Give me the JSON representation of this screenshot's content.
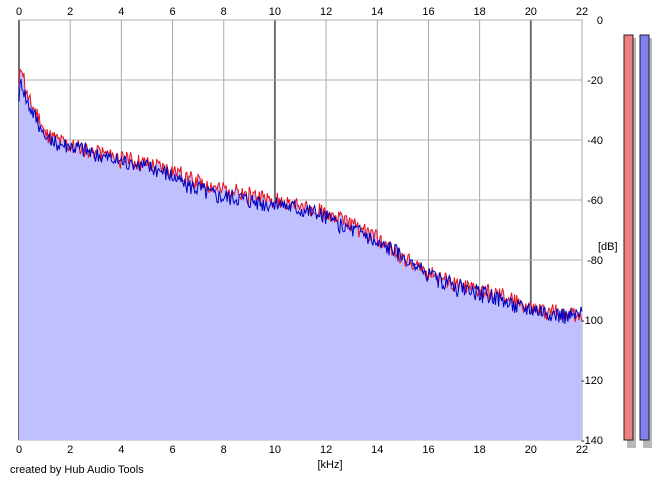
{
  "chart_data": {
    "type": "line",
    "title": "",
    "xlabel": "[kHz]",
    "ylabel": "[dB]",
    "xlim": [
      0,
      22
    ],
    "ylim": [
      -140,
      0
    ],
    "x_ticks": [
      0,
      2,
      4,
      6,
      8,
      10,
      12,
      14,
      16,
      18,
      20,
      22
    ],
    "y_ticks": [
      0,
      -20,
      -40,
      -60,
      -80,
      -100,
      -120,
      -140
    ],
    "x_tick_labels": [
      "0",
      "2",
      "4",
      "6",
      "8",
      "10",
      "12",
      "14",
      "16",
      "18",
      "20",
      "22"
    ],
    "y_tick_labels": [
      "0",
      "-20",
      "-40",
      "-60",
      "-80",
      "-100",
      "-120",
      "-140"
    ],
    "grid": true,
    "x_axis_labels_top_and_bottom": true,
    "series": [
      {
        "color": "#e8101a",
        "x": [
          0,
          0.1,
          0.3,
          0.5,
          0.8,
          1,
          1.5,
          2,
          2.5,
          3,
          3.5,
          4,
          4.5,
          5,
          5.5,
          6,
          6.5,
          7,
          7.5,
          8,
          8.5,
          9,
          9.5,
          10,
          10.5,
          11,
          11.5,
          12,
          12.5,
          13,
          13.5,
          14,
          14.5,
          15,
          15.5,
          16,
          16.5,
          17,
          17.5,
          18,
          18.5,
          19,
          19.5,
          20,
          20.5,
          21,
          21.5,
          22
        ],
        "values": [
          -22,
          -14,
          -25,
          -28,
          -33,
          -38,
          -40,
          -42,
          -43,
          -44,
          -45,
          -46,
          -47,
          -48,
          -49,
          -50,
          -52,
          -54,
          -55,
          -56,
          -57,
          -58,
          -59,
          -60,
          -61,
          -62,
          -63,
          -64,
          -66,
          -68,
          -70,
          -73,
          -76,
          -79,
          -82,
          -84,
          -86,
          -88,
          -89,
          -90,
          -91,
          -92,
          -94,
          -96,
          -97,
          -97,
          -98,
          -98
        ]
      },
      {
        "color": "#0000c0",
        "x": [
          0,
          0.1,
          0.3,
          0.5,
          0.8,
          1,
          1.5,
          2,
          2.5,
          3,
          3.5,
          4,
          4.5,
          5,
          5.5,
          6,
          6.5,
          7,
          7.5,
          8,
          8.5,
          9,
          9.5,
          10,
          10.5,
          11,
          11.5,
          12,
          12.5,
          13,
          13.5,
          14,
          14.5,
          15,
          15.5,
          16,
          16.5,
          17,
          17.5,
          18,
          18.5,
          19,
          19.5,
          20,
          20.5,
          21,
          21.5,
          22
        ],
        "values": [
          -25,
          -20,
          -27,
          -30,
          -35,
          -39,
          -41,
          -42,
          -43,
          -45,
          -46,
          -47,
          -48,
          -49,
          -50,
          -52,
          -55,
          -56,
          -58,
          -59,
          -59,
          -60,
          -61,
          -61,
          -62,
          -63,
          -64,
          -66,
          -68,
          -70,
          -71,
          -75,
          -76,
          -79,
          -82,
          -85,
          -87,
          -88,
          -90,
          -91,
          -92,
          -94,
          -96,
          -96,
          -97,
          -98,
          -99,
          -98
        ]
      }
    ],
    "spectrum_fill_color": "#c0c0ff",
    "level_meters": [
      {
        "color": "#f08080",
        "level_db": -5
      },
      {
        "color": "#8080f0",
        "level_db": -5
      }
    ]
  },
  "footer": {
    "credit": "created by Hub Audio Tools"
  }
}
